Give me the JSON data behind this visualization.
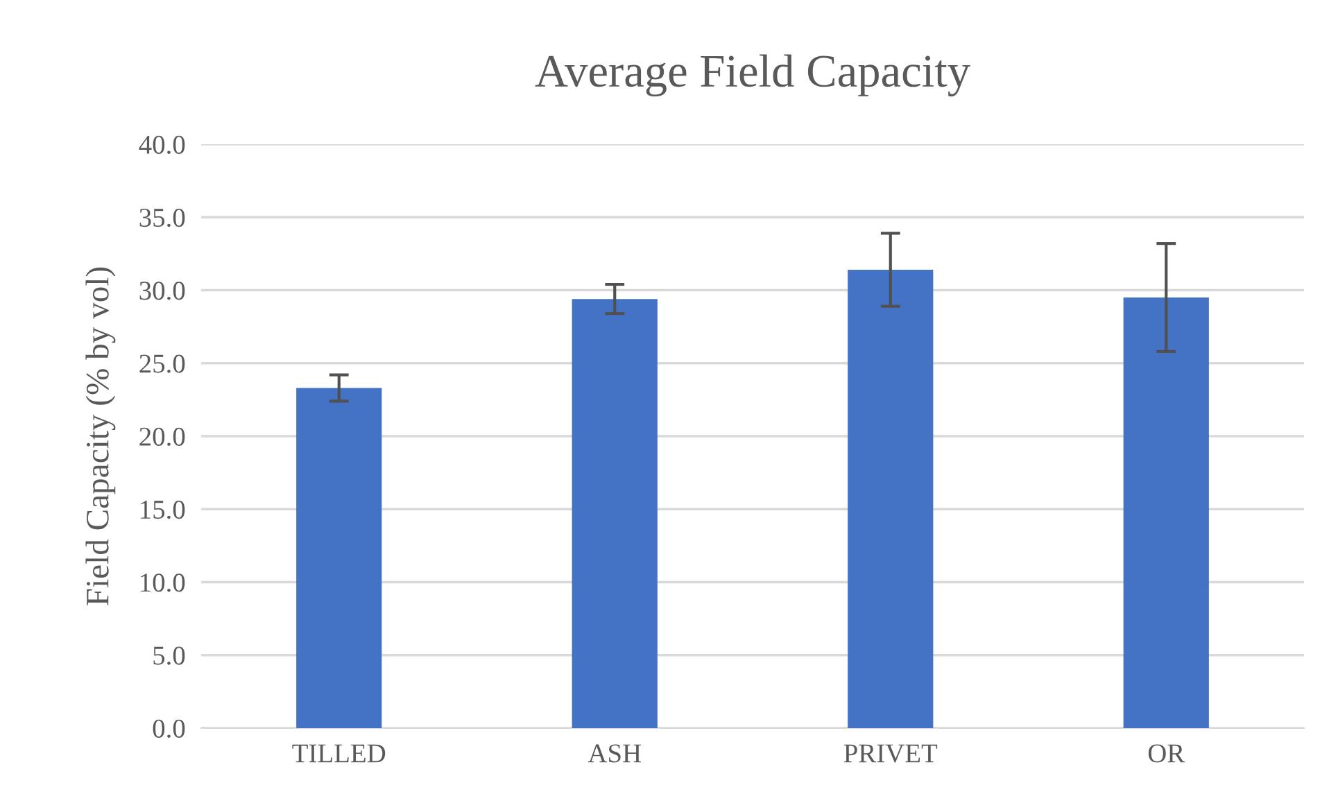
{
  "chart_data": {
    "type": "bar",
    "title": "Average Field Capacity",
    "ylabel": "Field Capacity (% by vol)",
    "categories": [
      "TILLED",
      "ASH",
      "PRIVET",
      "OR"
    ],
    "values": [
      23.3,
      29.4,
      31.4,
      29.5
    ],
    "errors": [
      0.9,
      1.0,
      2.5,
      3.7
    ],
    "color": "#4472c4",
    "ylim": [
      0,
      40
    ],
    "yticks": [
      {
        "value": 0,
        "label": "0.0"
      },
      {
        "value": 5,
        "label": "5.0"
      },
      {
        "value": 10,
        "label": "10.0"
      },
      {
        "value": 15,
        "label": "15.0"
      },
      {
        "value": 20,
        "label": "20.0"
      },
      {
        "value": 25,
        "label": "25.0"
      },
      {
        "value": 30,
        "label": "30.0"
      },
      {
        "value": 35,
        "label": "35.0"
      },
      {
        "value": 40,
        "label": "40.0"
      }
    ],
    "grid": "y"
  }
}
